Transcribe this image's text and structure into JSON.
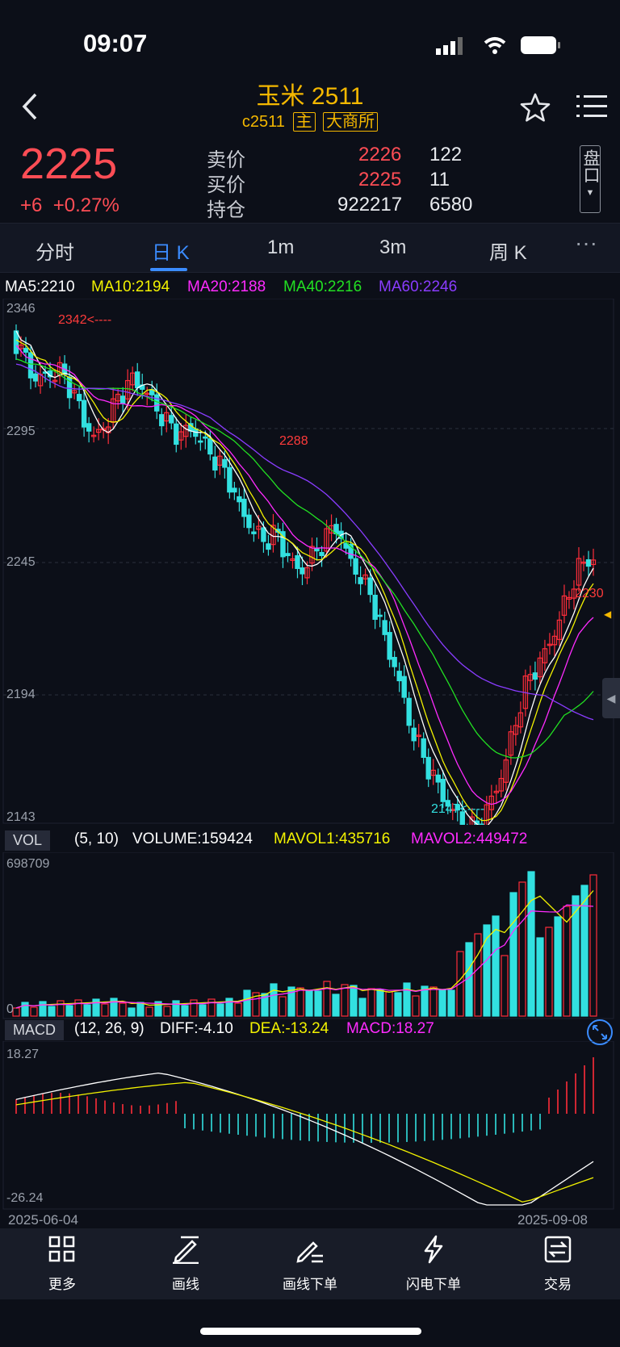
{
  "status": {
    "time": "09:07"
  },
  "header": {
    "title": "玉米 2511",
    "code": "c2511",
    "tag_main": "主",
    "tag_exchange": "大商所"
  },
  "quote": {
    "price": "2225",
    "change": "+6",
    "change_pct": "+0.27%",
    "rows": [
      {
        "label": "卖价",
        "value": "2226",
        "qty": "122"
      },
      {
        "label": "买价",
        "value": "2225",
        "qty": "11"
      },
      {
        "label": "持仓",
        "value": "922217",
        "qty": "6580"
      }
    ],
    "panel_label": "盘口"
  },
  "tabs": [
    "分时",
    "日 K",
    "1m",
    "3m",
    "周 K"
  ],
  "active_tab": "日 K",
  "ma_legend": [
    {
      "text": "MA5:2210",
      "color": "#ffffff"
    },
    {
      "text": "MA10:2194",
      "color": "#f2f200"
    },
    {
      "text": "MA20:2188",
      "color": "#ff2bff"
    },
    {
      "text": "MA40:2216",
      "color": "#22e022"
    },
    {
      "text": "MA60:2246",
      "color": "#8a3cff"
    }
  ],
  "price_axis": [
    "2346",
    "2295",
    "2245",
    "2194",
    "2143"
  ],
  "annotations": {
    "high": "2342<----",
    "mid": "2288",
    "low": "2147<----",
    "last": "2230"
  },
  "volume": {
    "chip": "VOL",
    "params": "(5, 10)",
    "volume": "VOLUME:159424",
    "mavol1": "MAVOL1:435716",
    "mavol2": "MAVOL2:449472",
    "axis_top": "698709",
    "axis_bottom": "0"
  },
  "macd": {
    "chip": "MACD",
    "params": "(12, 26, 9)",
    "diff": "DIFF:-4.10",
    "dea": "DEA:-13.24",
    "macd": "MACD:18.27",
    "axis_top": "18.27",
    "axis_bottom": "-26.24"
  },
  "date_start": "2025-06-04",
  "date_end": "2025-09-08",
  "colors": {
    "up": "#ff2d3a",
    "down": "#32e0e0",
    "accent": "#f5b800",
    "active": "#3b8cff"
  },
  "toolbar": [
    {
      "label": "更多",
      "icon": "grid-icon"
    },
    {
      "label": "画线",
      "icon": "draw-line-icon"
    },
    {
      "label": "画线下单",
      "icon": "draw-order-icon"
    },
    {
      "label": "闪电下单",
      "icon": "lightning-icon"
    },
    {
      "label": "交易",
      "icon": "trade-icon"
    }
  ]
}
